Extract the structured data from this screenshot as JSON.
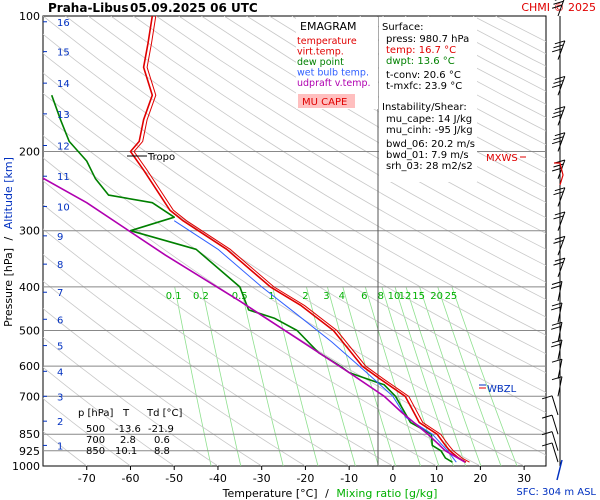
{
  "header": {
    "station": "Praha-Libus",
    "datetime": "05.09.2025 06 UTC",
    "credit": "CHMI © 2025"
  },
  "chart_data": {
    "type": "line",
    "title": "EMAGRAM",
    "xlabel": "Temperature [°C]",
    "xlabel_sep": "/",
    "xlabel2": "Mixing ratio [g/kg]",
    "ylabel": "Pressure [hPa]",
    "ylabel_sep": "/",
    "ylabel2": "Altitude [km]",
    "xlim": [
      -80,
      35
    ],
    "ylim": [
      1000,
      100
    ],
    "y_scale": "log",
    "x_ticks": [
      -70,
      -60,
      -50,
      -40,
      -30,
      -20,
      -10,
      0,
      10,
      20,
      30
    ],
    "pressure_ticks": [
      100,
      200,
      300,
      400,
      500,
      600,
      700,
      850,
      925,
      1000
    ],
    "altitude_ticks": [
      {
        "label": "1",
        "p": 900
      },
      {
        "label": "2",
        "p": 795
      },
      {
        "label": "3",
        "p": 700
      },
      {
        "label": "4",
        "p": 616
      },
      {
        "label": "5",
        "p": 540
      },
      {
        "label": "6",
        "p": 472
      },
      {
        "label": "7",
        "p": 411
      },
      {
        "label": "8",
        "p": 356
      },
      {
        "label": "9",
        "p": 308
      },
      {
        "label": "10",
        "p": 265
      },
      {
        "label": "11",
        "p": 227
      },
      {
        "label": "12",
        "p": 194
      },
      {
        "label": "13",
        "p": 165
      },
      {
        "label": "14",
        "p": 141
      },
      {
        "label": "15",
        "p": 120
      },
      {
        "label": "16",
        "p": 103
      }
    ],
    "mixing_ratio_labels": [
      "0.1",
      "0.2",
      "0.5",
      "1",
      "2",
      "3",
      "4",
      "6",
      "8",
      "10",
      "12",
      "15",
      "20",
      "25"
    ],
    "legend": [
      {
        "name": "temperature",
        "color": "#e00000"
      },
      {
        "name": "virt.temp.",
        "color": "#e00000"
      },
      {
        "name": "dew point",
        "color": "#008000"
      },
      {
        "name": "wet bulb temp.",
        "color": "#3060ff"
      },
      {
        "name": "udpraft v.temp.",
        "color": "#b000b0"
      }
    ],
    "mu_cape_label": "MU CAPE",
    "series": [
      {
        "name": "temperature",
        "color": "#e00000",
        "points": [
          [
            16.7,
            980.7
          ],
          [
            15,
            960
          ],
          [
            13,
            925
          ],
          [
            12,
            900
          ],
          [
            10.1,
            850
          ],
          [
            6,
            800
          ],
          [
            2.8,
            700
          ],
          [
            -3,
            640
          ],
          [
            -7,
            600
          ],
          [
            -13.6,
            500
          ],
          [
            -21,
            440
          ],
          [
            -28,
            400
          ],
          [
            -38,
            330
          ],
          [
            -48,
            285
          ],
          [
            -51,
            270
          ],
          [
            -57,
            220
          ],
          [
            -60,
            200
          ],
          [
            -58,
            190
          ],
          [
            -57,
            170
          ],
          [
            -55,
            150
          ],
          [
            -57,
            130
          ],
          [
            -56,
            115
          ],
          [
            -55,
            100
          ]
        ]
      },
      {
        "name": "dew point",
        "color": "#008000",
        "points": [
          [
            13.6,
            980.7
          ],
          [
            12,
            960
          ],
          [
            11,
            925
          ],
          [
            9,
            900
          ],
          [
            8.8,
            850
          ],
          [
            4,
            800
          ],
          [
            0.6,
            700
          ],
          [
            -2,
            660
          ],
          [
            -6,
            640
          ],
          [
            -10,
            620
          ],
          [
            -12,
            600
          ],
          [
            -17,
            560
          ],
          [
            -21.9,
            500
          ],
          [
            -27,
            470
          ],
          [
            -33,
            450
          ],
          [
            -35,
            400
          ],
          [
            -45,
            330
          ],
          [
            -60,
            300
          ],
          [
            -50,
            280
          ],
          [
            -55,
            260
          ],
          [
            -65,
            250
          ],
          [
            -68,
            230
          ],
          [
            -70,
            210
          ],
          [
            -74,
            190
          ],
          [
            -76,
            170
          ],
          [
            -78,
            150
          ]
        ]
      },
      {
        "name": "wet bulb temp.",
        "color": "#3060ff",
        "points": [
          [
            14.5,
            980.7
          ],
          [
            12.5,
            925
          ],
          [
            9,
            850
          ],
          [
            3,
            780
          ],
          [
            0,
            700
          ],
          [
            -6,
            620
          ],
          [
            -14,
            530
          ],
          [
            -22,
            460
          ],
          [
            -30,
            400
          ],
          [
            -40,
            330
          ],
          [
            -50,
            285
          ]
        ]
      },
      {
        "name": "udpraft v.temp.",
        "color": "#b000b0",
        "points": [
          [
            16.5,
            980.7
          ],
          [
            12,
            925
          ],
          [
            8,
            850
          ],
          [
            2,
            760
          ],
          [
            -2,
            700
          ],
          [
            -10,
            620
          ],
          [
            -22,
            520
          ],
          [
            -35,
            430
          ],
          [
            -52,
            340
          ],
          [
            -70,
            260
          ],
          [
            -95,
            190
          ]
        ]
      }
    ],
    "surface": {
      "heading": "Surface:",
      "press": "press: 980.7 hPa",
      "temp": "temp: 16.7 °C",
      "dwpt": "dwpt: 13.6 °C",
      "t_conv": "t-conv: 20.6 °C",
      "t_mxfc": "t-mxfc: 23.9 °C"
    },
    "instability": {
      "heading": "Instability/Shear:",
      "mu_cape": "mu_cape: 14 J/kg",
      "mu_cinh": "mu_cinh: -95 J/kg",
      "bwd_06": "bwd_06: 20.2 m/s",
      "bwd_01": "bwd_01: 7.9 m/s",
      "srh_03": "srh_03: 28 m2/s2"
    },
    "table": {
      "headers": [
        "p [hPa]",
        "T",
        "Td [°C]"
      ],
      "rows": [
        [
          "500",
          "-13.6",
          "-21.9"
        ],
        [
          "700",
          "2.8",
          "0.6"
        ],
        [
          "850",
          "10.1",
          "8.8"
        ]
      ]
    },
    "annotations": {
      "tropo": "Tropo",
      "mxws": "MXWS",
      "wbzl": "WBZL",
      "sfc": "SFC: 304 m ASL"
    },
    "wind_levels": [
      100,
      125,
      150,
      175,
      200,
      230,
      265,
      300,
      340,
      380,
      430,
      480,
      530,
      580,
      640,
      700,
      770,
      850,
      925,
      980
    ]
  }
}
